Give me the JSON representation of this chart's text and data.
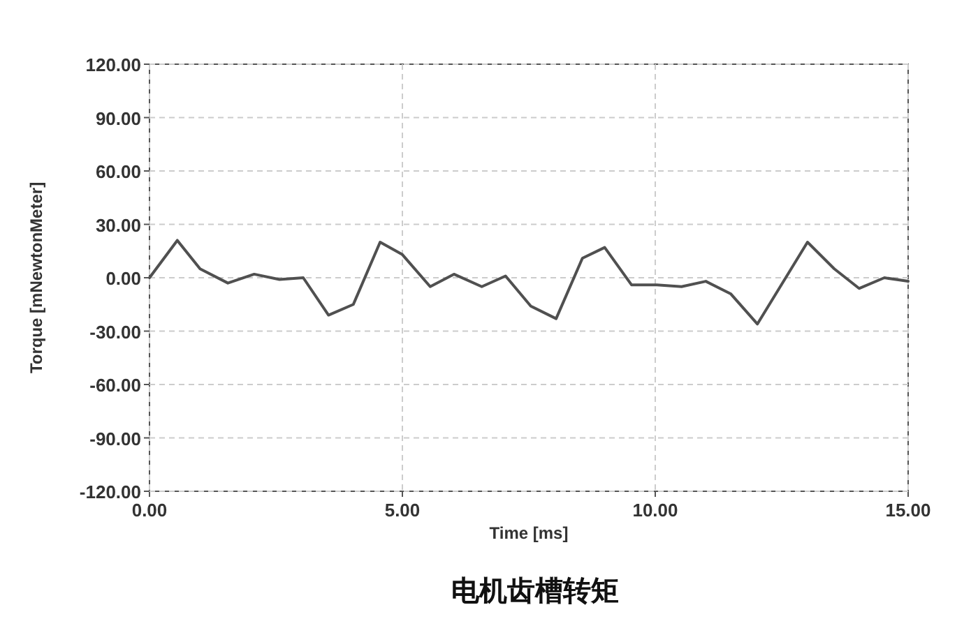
{
  "chart_data": {
    "type": "line",
    "title": "电机齿槽转矩",
    "xlabel": "Time [ms]",
    "ylabel": "Torque [mNewtonMeter]",
    "x": [
      0,
      0.55,
      1.0,
      1.55,
      2.07,
      2.57,
      3.04,
      3.54,
      4.03,
      4.56,
      5.0,
      5.55,
      6.02,
      6.57,
      7.04,
      7.54,
      8.04,
      8.56,
      9.0,
      9.53,
      10.03,
      10.52,
      11.0,
      11.49,
      12.02,
      13.01,
      13.54,
      14.03,
      14.53,
      15.0
    ],
    "values": [
      0,
      21,
      5,
      -3,
      2,
      -1,
      0,
      -21,
      -15,
      20,
      13,
      -5,
      2,
      -5,
      1,
      -16,
      -23,
      11,
      17,
      -4,
      -4,
      -5,
      -2,
      -9,
      -26,
      20,
      5,
      -6,
      0,
      -2
    ],
    "color": "#505050",
    "xlim": [
      0,
      15
    ],
    "ylim": [
      -120,
      120
    ],
    "xticks": [
      {
        "value": 0,
        "label": "0.00"
      },
      {
        "value": 5,
        "label": "5.00"
      },
      {
        "value": 10,
        "label": "10.00"
      },
      {
        "value": 15,
        "label": "15.00"
      }
    ],
    "yticks": [
      {
        "value": -120,
        "label": "-120.00"
      },
      {
        "value": -90,
        "label": "-90.00"
      },
      {
        "value": -60,
        "label": "-60.00"
      },
      {
        "value": -30,
        "label": "-30.00"
      },
      {
        "value": 0,
        "label": "0.00"
      },
      {
        "value": 30,
        "label": "30.00"
      },
      {
        "value": 60,
        "label": "60.00"
      },
      {
        "value": 90,
        "label": "90.00"
      },
      {
        "value": 120,
        "label": "120.00"
      }
    ],
    "grid": true
  }
}
